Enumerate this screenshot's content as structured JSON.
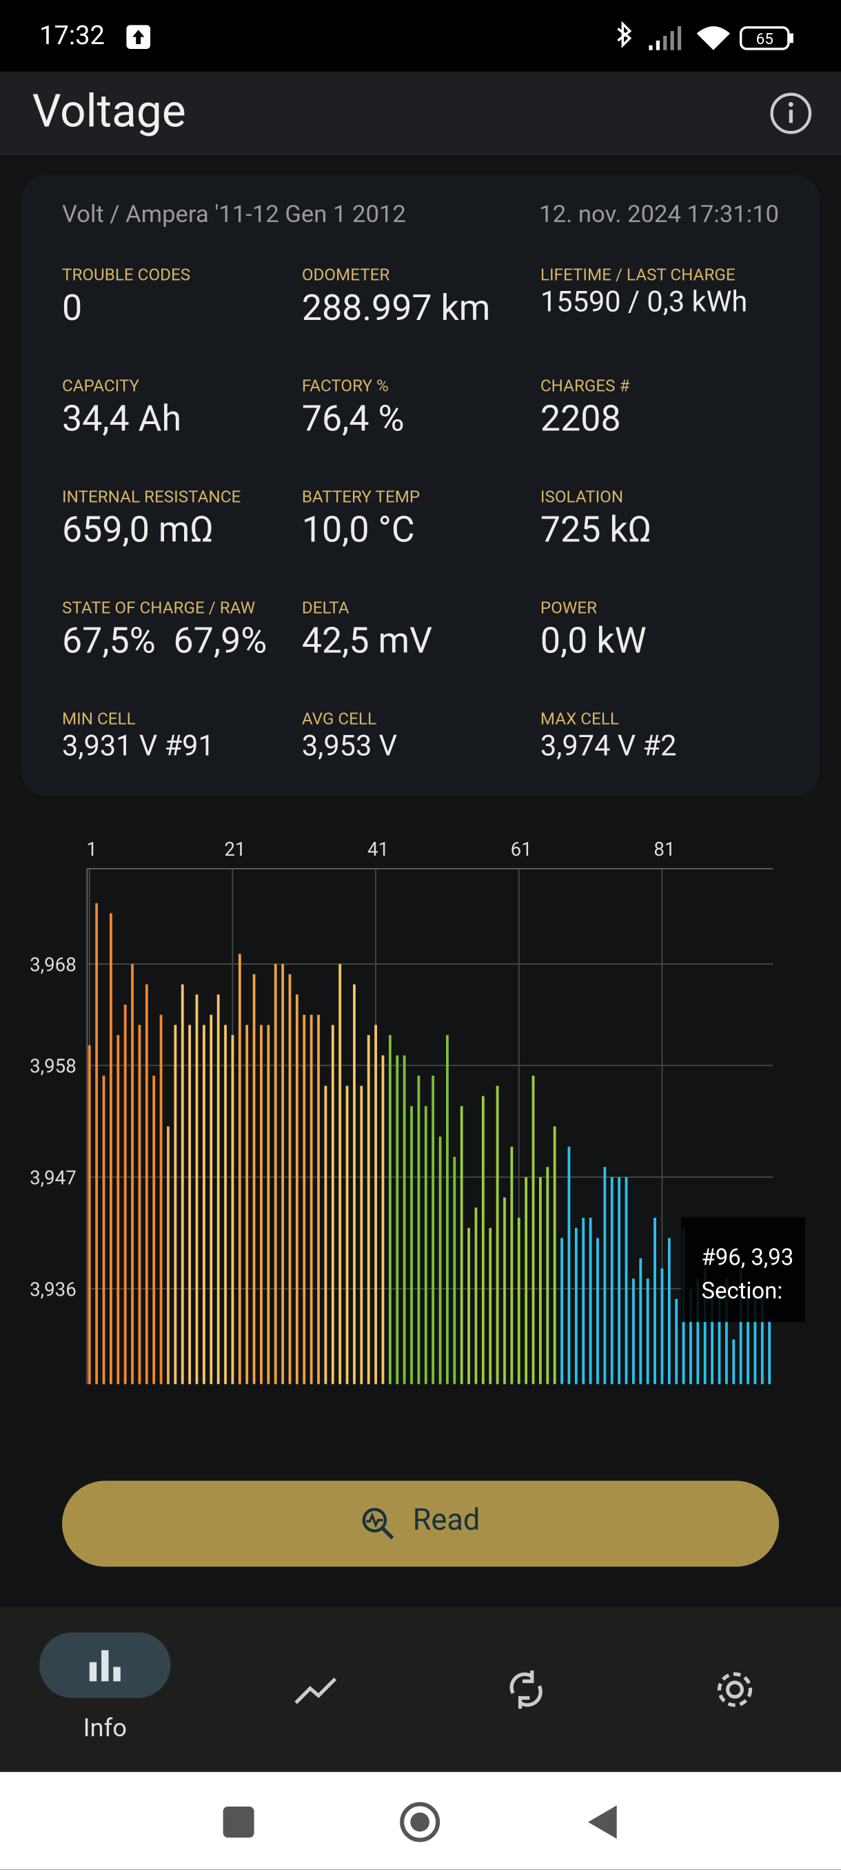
{
  "status_bar": {
    "time": "17:32",
    "battery": "65"
  },
  "app_bar": {
    "title": "Voltage"
  },
  "card": {
    "vehicle": "Volt / Ampera '11-12 Gen 1 2012",
    "timestamp": "12. nov. 2024 17:31:10",
    "metrics": [
      {
        "label": "TROUBLE CODES",
        "value": "0"
      },
      {
        "label": "ODOMETER",
        "value": "288.997 km"
      },
      {
        "label": "LIFETIME / LAST CHARGE",
        "value": "15590 / 0,3 kWh"
      },
      {
        "label": "CAPACITY",
        "value": "34,4 Ah"
      },
      {
        "label": "FACTORY %",
        "value": "76,4 %"
      },
      {
        "label": "CHARGES #",
        "value": "2208"
      },
      {
        "label": "INTERNAL RESISTANCE",
        "value": "659,0 mΩ"
      },
      {
        "label": "BATTERY TEMP",
        "value": "10,0 °C"
      },
      {
        "label": "ISOLATION",
        "value": "725 kΩ"
      },
      {
        "label": "STATE OF CHARGE / RAW",
        "value": "67,5%  67,9%"
      },
      {
        "label": "DELTA",
        "value": "42,5 mV"
      },
      {
        "label": "POWER",
        "value": "0,0 kW"
      },
      {
        "label": "MIN CELL",
        "value": "3,931 V #91"
      },
      {
        "label": "AVG CELL",
        "value": "3,953 V"
      },
      {
        "label": "MAX CELL",
        "value": "3,974 V #2"
      }
    ]
  },
  "chart_data": {
    "type": "bar",
    "x": [
      1,
      2,
      3,
      4,
      5,
      6,
      7,
      8,
      9,
      10,
      11,
      12,
      13,
      14,
      15,
      16,
      17,
      18,
      19,
      20,
      21,
      22,
      23,
      24,
      25,
      26,
      27,
      28,
      29,
      30,
      31,
      32,
      33,
      34,
      35,
      36,
      37,
      38,
      39,
      40,
      41,
      42,
      43,
      44,
      45,
      46,
      47,
      48,
      49,
      50,
      51,
      52,
      53,
      54,
      55,
      56,
      57,
      58,
      59,
      60,
      61,
      62,
      63,
      64,
      65,
      66,
      67,
      68,
      69,
      70,
      71,
      72,
      73,
      74,
      75,
      76,
      77,
      78,
      79,
      80,
      81,
      82,
      83,
      84,
      85,
      86,
      87,
      88,
      89,
      90,
      91,
      92,
      93,
      94,
      95,
      96
    ],
    "values": [
      3.96,
      3.974,
      3.957,
      3.973,
      3.961,
      3.964,
      3.968,
      3.962,
      3.966,
      3.957,
      3.963,
      3.952,
      3.962,
      3.966,
      3.962,
      3.965,
      3.962,
      3.963,
      3.965,
      3.962,
      3.961,
      3.969,
      3.962,
      3.967,
      3.962,
      3.962,
      3.968,
      3.968,
      3.967,
      3.965,
      3.963,
      3.963,
      3.963,
      3.956,
      3.962,
      3.968,
      3.956,
      3.966,
      3.956,
      3.961,
      3.962,
      3.959,
      3.961,
      3.959,
      3.959,
      3.954,
      3.957,
      3.954,
      3.957,
      3.951,
      3.961,
      3.949,
      3.954,
      3.942,
      3.944,
      3.955,
      3.942,
      3.956,
      3.945,
      3.95,
      3.943,
      3.947,
      3.957,
      3.947,
      3.948,
      3.952,
      3.941,
      3.95,
      3.942,
      3.943,
      3.943,
      3.941,
      3.948,
      3.947,
      3.947,
      3.947,
      3.937,
      3.939,
      3.937,
      3.943,
      3.938,
      3.941,
      3.935,
      3.942,
      3.936,
      3.937,
      3.938,
      3.936,
      3.936,
      3.937,
      3.931,
      3.938,
      3.936,
      3.935,
      3.936,
      3.933
    ],
    "colors": [
      "#f0882e",
      "#f0882e",
      "#f0882e",
      "#f0882e",
      "#f0882e",
      "#f0882e",
      "#f0882e",
      "#f0882e",
      "#f0882e",
      "#f0882e",
      "#f0882e",
      "#f5b04a",
      "#f5c560",
      "#f5c560",
      "#f5c560",
      "#f5c560",
      "#f5c560",
      "#f5c560",
      "#f5c560",
      "#f5c560",
      "#f5c560",
      "#f0a040",
      "#f0a040",
      "#f0a040",
      "#f0a040",
      "#f0a040",
      "#f0a040",
      "#f0a040",
      "#f0a040",
      "#f0a040",
      "#f0a040",
      "#f0a040",
      "#f0a040",
      "#f5c560",
      "#f5c560",
      "#f5c560",
      "#f5c560",
      "#f5c560",
      "#f5c560",
      "#f5c560",
      "#f5c560",
      "#f5c560",
      "#7cc034",
      "#7cc034",
      "#7cc034",
      "#7cc034",
      "#7cc034",
      "#7cc034",
      "#7cc034",
      "#7cc034",
      "#7cc034",
      "#7cc034",
      "#9ccc3c",
      "#9ccc3c",
      "#9ccc3c",
      "#9ccc3c",
      "#9ccc3c",
      "#9ccc3c",
      "#9ccc3c",
      "#9ccc3c",
      "#9ccc3c",
      "#9ccc3c",
      "#9ccc3c",
      "#9ccc3c",
      "#9ccc3c",
      "#9ccc3c",
      "#2cc0e8",
      "#2cc0e8",
      "#2cc0e8",
      "#2cc0e8",
      "#2cc0e8",
      "#2cc0e8",
      "#2cc0e8",
      "#2cc0e8",
      "#2cc0e8",
      "#2cc0e8",
      "#2cc0e8",
      "#2cc0e8",
      "#2cc0e8",
      "#2cc0e8",
      "#2cc0e8",
      "#2cc0e8",
      "#2cc0e8",
      "#2cc0e8",
      "#2cc0e8",
      "#2cc0e8",
      "#2cc0e8",
      "#2cc0e8",
      "#2cc0e8",
      "#2cc0e8",
      "#2cc0e8",
      "#2cc0e8",
      "#2cc0e8",
      "#2cc0e8",
      "#2cc0e8",
      "#2cc0e8"
    ],
    "xlim": [
      0.67,
      96.5
    ],
    "xticks": [
      1,
      21,
      41,
      61,
      81
    ],
    "ylim": [
      3.9266,
      3.9774
    ],
    "yticks": [
      {
        "value": 3.968,
        "label": "3,968"
      },
      {
        "value": 3.958,
        "label": "3,958"
      },
      {
        "value": 3.947,
        "label": "3,947"
      },
      {
        "value": 3.936,
        "label": "3,936"
      }
    ],
    "grid": true,
    "tooltip": [
      "#96, 3,93",
      "Section:"
    ]
  },
  "button": {
    "label": "Read"
  },
  "nav": {
    "active_label": "Info"
  }
}
